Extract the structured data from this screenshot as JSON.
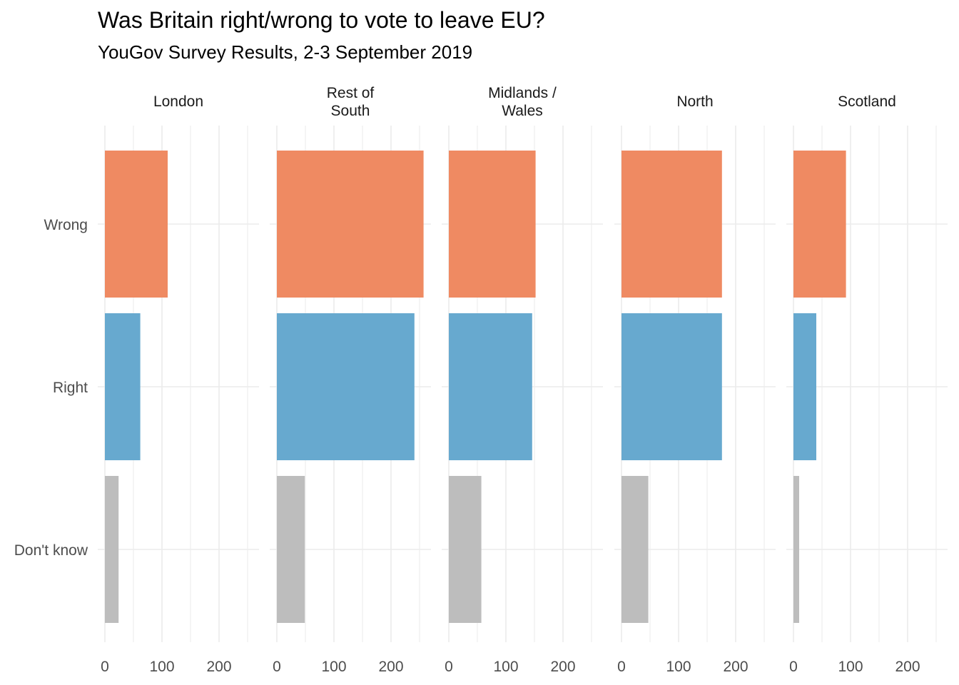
{
  "chart_data": {
    "type": "bar",
    "orientation": "horizontal",
    "faceted": true,
    "title": "Was Britain right/wrong to vote to leave EU?",
    "subtitle": "YouGov Survey Results, 2-3 September 2019",
    "xlabel": "",
    "ylabel": "",
    "xlim": [
      0,
      270
    ],
    "x_ticks": [
      0,
      100,
      200
    ],
    "x_tick_labels": [
      "0",
      "100",
      "200"
    ],
    "categories": [
      "Wrong",
      "Right",
      "Don't know"
    ],
    "colors": {
      "Wrong": "#EF8A62",
      "Right": "#67A9CF",
      "Don't know": "#BDBDBD"
    },
    "grid": true,
    "panels": [
      {
        "label_lines": [
          "London"
        ],
        "values": [
          110,
          62,
          24
        ]
      },
      {
        "label_lines": [
          "Rest of",
          "South"
        ],
        "values": [
          257,
          241,
          49
        ]
      },
      {
        "label_lines": [
          "Midlands /",
          "Wales"
        ],
        "values": [
          152,
          146,
          57
        ]
      },
      {
        "label_lines": [
          "North"
        ],
        "values": [
          176,
          176,
          47
        ]
      },
      {
        "label_lines": [
          "Scotland"
        ],
        "values": [
          92,
          40,
          10
        ]
      }
    ]
  }
}
